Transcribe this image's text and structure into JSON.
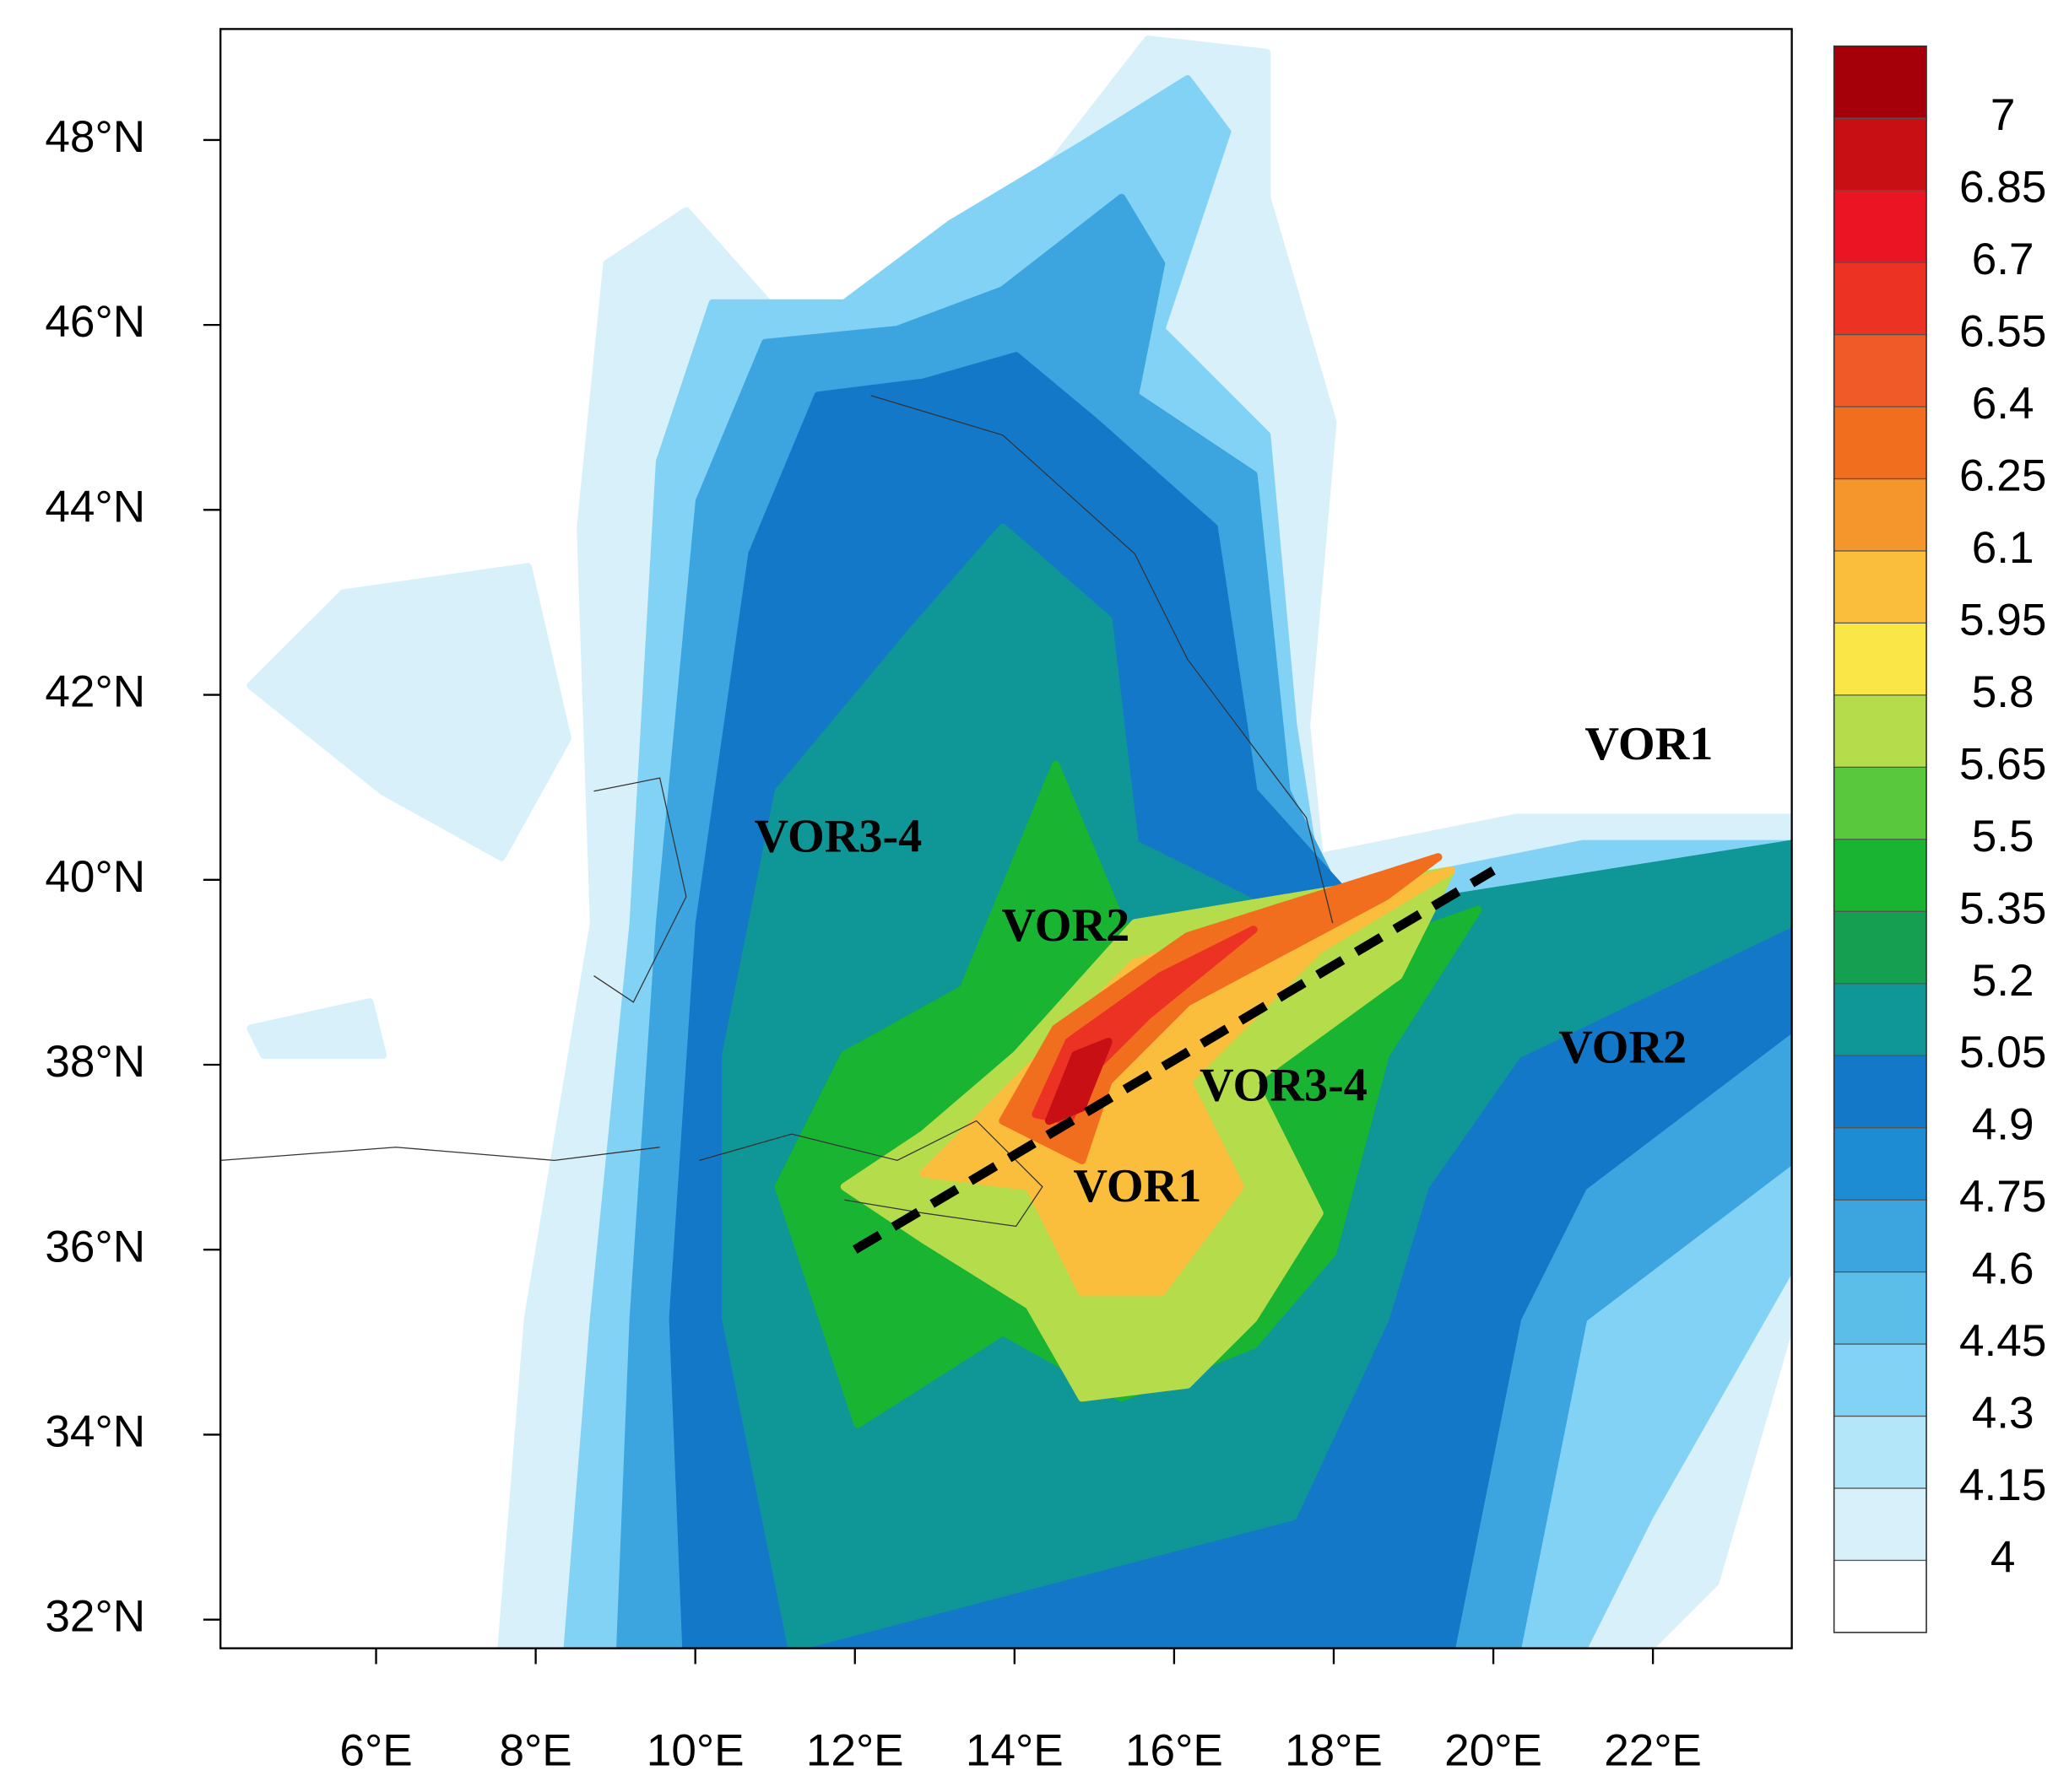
{
  "map": {
    "xlim": [
      4.05,
      23.74
    ],
    "ylim": [
      31.69,
      49.2
    ],
    "xticks": [
      {
        "value": 6,
        "label": "6°E"
      },
      {
        "value": 8,
        "label": "8°E"
      },
      {
        "value": 10,
        "label": "10°E"
      },
      {
        "value": 12,
        "label": "12°E"
      },
      {
        "value": 14,
        "label": "14°E"
      },
      {
        "value": 16,
        "label": "16°E"
      },
      {
        "value": 18,
        "label": "18°E"
      },
      {
        "value": 20,
        "label": "20°E"
      },
      {
        "value": 22,
        "label": "22°E"
      }
    ],
    "yticks": [
      {
        "value": 32,
        "label": "32°N"
      },
      {
        "value": 34,
        "label": "34°N"
      },
      {
        "value": 36,
        "label": "36°N"
      },
      {
        "value": 38,
        "label": "38°N"
      },
      {
        "value": 40,
        "label": "40°N"
      },
      {
        "value": 42,
        "label": "42°N"
      },
      {
        "value": 44,
        "label": "44°N"
      },
      {
        "value": 46,
        "label": "46°N"
      },
      {
        "value": 48,
        "label": "48°N"
      }
    ],
    "colorbar": {
      "levels": [
        4,
        4.15,
        4.3,
        4.45,
        4.6,
        4.75,
        4.9,
        5.05,
        5.2,
        5.35,
        5.5,
        5.65,
        5.8,
        5.95,
        6.1,
        6.25,
        6.4,
        6.55,
        6.7,
        6.85,
        7
      ],
      "colors": [
        "#ffffff",
        "#d7f0fa",
        "#b4e6fa",
        "#82d2f5",
        "#5abee9",
        "#3ca5e0",
        "#1e8cd2",
        "#1478c8",
        "#0f9696",
        "#14a050",
        "#19b432",
        "#5ac83c",
        "#b4dc4b",
        "#fae646",
        "#fabe3c",
        "#f5962d",
        "#f06e1e",
        "#f05a28",
        "#eb3223",
        "#eb1423",
        "#c80f14",
        "#a5000a"
      ]
    },
    "annotations": [
      {
        "text": "VOR1",
        "lon": 21.95,
        "lat": 41.42
      },
      {
        "text": "VOR3-4",
        "lon": 11.79,
        "lat": 40.42
      },
      {
        "text": "VOR2",
        "lon": 14.64,
        "lat": 39.46
      },
      {
        "text": "VOR2",
        "lon": 21.62,
        "lat": 38.14
      },
      {
        "text": "VOR3-4",
        "lon": 17.37,
        "lat": 37.73
      },
      {
        "text": "VOR1",
        "lon": 15.54,
        "lat": 36.64
      }
    ],
    "section_line": {
      "start": {
        "lon": 12,
        "lat": 36
      },
      "end": {
        "lon": 20,
        "lat": 40.1
      }
    }
  }
}
